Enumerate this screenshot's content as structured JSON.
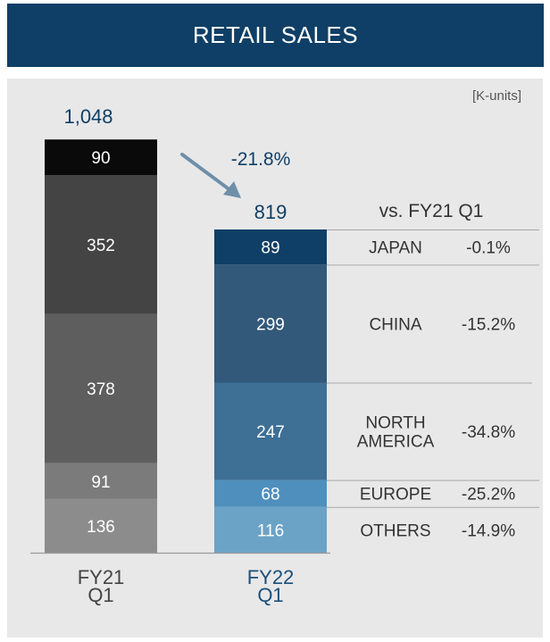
{
  "title": "RETAIL SALES",
  "unit_label": "[K-units]",
  "chart_data": {
    "type": "bar",
    "stacked": true,
    "categories": [
      "FY21\nQ1",
      "FY22\nQ1"
    ],
    "totals": [
      "1,048",
      "819"
    ],
    "change_label": "-21.8%",
    "comparison_header": "vs. FY21 Q1",
    "bars": [
      {
        "category": "FY21\nQ1",
        "segments": [
          {
            "value": 136,
            "label": "136",
            "color": "#8c8c8c"
          },
          {
            "value": 91,
            "label": "91",
            "color": "#7b7b7b"
          },
          {
            "value": 378,
            "label": "378",
            "color": "#5e5e5e"
          },
          {
            "value": 352,
            "label": "352",
            "color": "#444444"
          },
          {
            "value": 90,
            "label": "90",
            "color": "#0a0a0a"
          }
        ]
      },
      {
        "category": "FY22\nQ1",
        "segments": [
          {
            "value": 116,
            "label": "116",
            "color": "#6ba3c7",
            "region": "OTHERS",
            "change": "-14.9%"
          },
          {
            "value": 68,
            "label": "68",
            "color": "#4f8fbd",
            "region": "EUROPE",
            "change": "-25.2%"
          },
          {
            "value": 247,
            "label": "247",
            "color": "#3e6f95",
            "region": "NORTH\nAMERICA",
            "change": "-34.8%"
          },
          {
            "value": 299,
            "label": "299",
            "color": "#33597a",
            "region": "CHINA",
            "change": "-15.2%"
          },
          {
            "value": 89,
            "label": "89",
            "color": "#0f3f66",
            "region": "JAPAN",
            "change": "-0.1%"
          }
        ]
      }
    ]
  },
  "colors": {
    "banner": "#0f3f66",
    "panel": "#e8e8e9",
    "accent_text": "#0f3f66",
    "arrow": "#6f8fa8",
    "category_fy22": "#1a4f7a"
  }
}
